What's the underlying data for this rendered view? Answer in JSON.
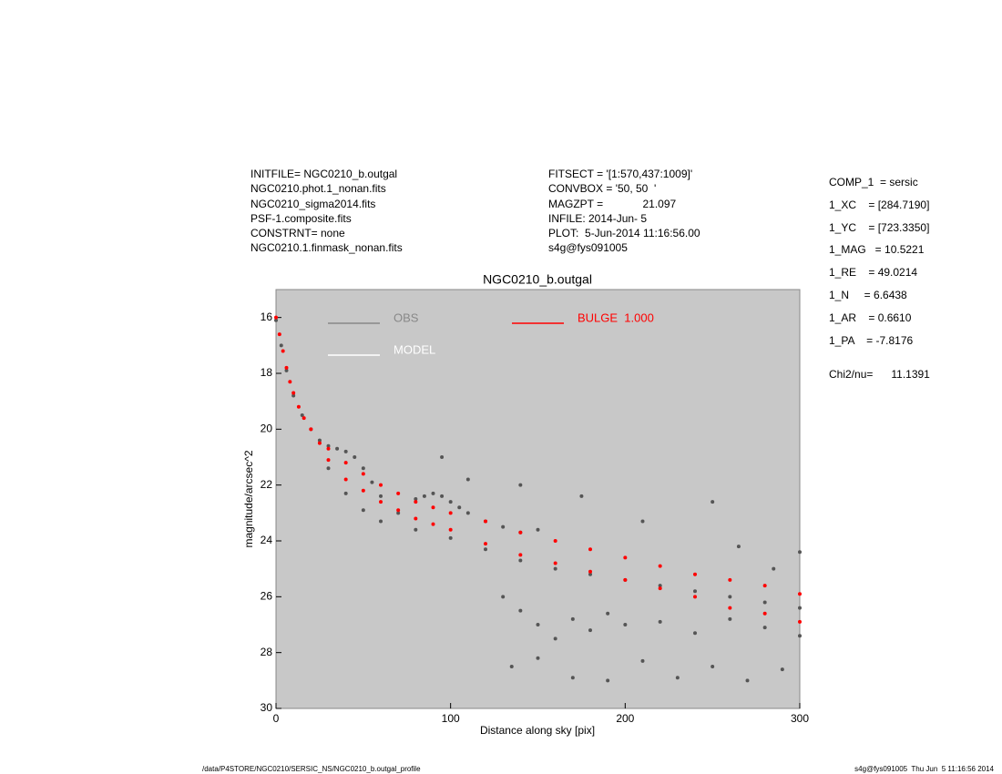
{
  "header": {
    "left": [
      "INITFILE= NGC0210_b.outgal",
      "NGC0210.phot.1_nonan.fits",
      "NGC0210_sigma2014.fits",
      "PSF-1.composite.fits",
      "CONSTRNT= none",
      "NGC0210.1.finmask_nonan.fits"
    ],
    "middle": [
      "FITSECT = '[1:570,437:1009]'",
      "CONVBOX = '50, 50  '",
      "MAGZPT =             21.097",
      "INFILE: 2014-Jun- 5",
      "PLOT:  5-Jun-2014 11:16:56.00",
      "s4g@fys091005"
    ],
    "params": [
      "COMP_1  = sersic",
      "1_XC    = [284.7190]",
      "1_YC    = [723.3350]",
      "1_MAG   = 10.5221",
      "1_RE    = 49.0214",
      "1_N     = 6.6438",
      "1_AR    = 0.6610",
      "1_PA    = -7.8176"
    ],
    "chi": "Chi2/nu=      11.1391"
  },
  "footer": {
    "left": "/data/P4STORE/NGC0210/SERSIC_NS/NGC0210_b.outgal_profile",
    "right": "s4g@fys091005  Thu Jun  5 11:16:56 2014"
  },
  "chart_data": {
    "type": "scatter",
    "title": "NGC0210_b.outgal",
    "x_label": "Distance along sky [pix]",
    "y_label": "magnitude/arcsec^2",
    "xlim": [
      0,
      300
    ],
    "ylim": [
      30,
      15
    ],
    "xticks": [
      0,
      100,
      200,
      300
    ],
    "yticks": [
      16,
      18,
      20,
      22,
      24,
      26,
      28,
      30
    ],
    "grid": false,
    "background": "#c8c8c8",
    "series": [
      {
        "name": "OBS",
        "color": "#555555",
        "x": [
          0,
          3,
          6,
          10,
          15,
          20,
          25,
          30,
          35,
          40,
          45,
          50,
          55,
          60,
          30,
          40,
          50,
          60,
          70,
          80,
          85,
          90,
          95,
          100,
          105,
          110,
          120,
          130,
          140,
          150,
          80,
          100,
          120,
          140,
          160,
          180,
          200,
          220,
          240,
          260,
          280,
          300,
          130,
          140,
          150,
          160,
          170,
          180,
          190,
          200,
          220,
          240,
          260,
          280,
          300,
          135,
          150,
          170,
          190,
          210,
          230,
          250,
          270,
          290,
          95,
          110,
          140,
          175,
          210,
          265,
          300,
          250,
          285
        ],
        "values": [
          16.1,
          17.0,
          17.9,
          18.8,
          19.5,
          20.0,
          20.4,
          20.6,
          20.7,
          20.8,
          21.0,
          21.4,
          21.9,
          22.4,
          21.4,
          22.3,
          22.9,
          23.3,
          23.0,
          22.5,
          22.4,
          22.3,
          22.4,
          22.6,
          22.8,
          23.0,
          23.3,
          23.5,
          23.7,
          23.6,
          23.6,
          23.9,
          24.3,
          24.7,
          25.0,
          25.2,
          25.4,
          25.6,
          25.8,
          26.0,
          26.2,
          26.4,
          26.0,
          26.5,
          27.0,
          27.5,
          26.8,
          27.2,
          26.6,
          27.0,
          26.9,
          27.3,
          26.8,
          27.1,
          27.4,
          28.5,
          28.2,
          28.9,
          29.0,
          28.3,
          28.9,
          28.5,
          29.0,
          28.6,
          21.0,
          21.8,
          22.0,
          22.4,
          23.3,
          24.2,
          24.4,
          22.6,
          25.0
        ]
      },
      {
        "name": "MODEL",
        "color": "#ffffff",
        "x": [],
        "values": []
      },
      {
        "name": "BULGE  1.000",
        "color": "#ff0000",
        "x": [
          0,
          2,
          4,
          6,
          8,
          10,
          13,
          16,
          20,
          25,
          30,
          30,
          40,
          40,
          50,
          50,
          60,
          60,
          70,
          70,
          80,
          80,
          90,
          90,
          100,
          100,
          120,
          120,
          140,
          140,
          160,
          160,
          180,
          180,
          200,
          200,
          220,
          220,
          240,
          240,
          260,
          260,
          280,
          280,
          300,
          300
        ],
        "values": [
          16.0,
          16.6,
          17.2,
          17.8,
          18.3,
          18.7,
          19.2,
          19.6,
          20.0,
          20.5,
          20.7,
          21.1,
          21.2,
          21.8,
          21.6,
          22.2,
          22.0,
          22.6,
          22.3,
          22.9,
          22.6,
          23.2,
          22.8,
          23.4,
          23.0,
          23.6,
          23.3,
          24.1,
          23.7,
          24.5,
          24.0,
          24.8,
          24.3,
          25.1,
          24.6,
          25.4,
          24.9,
          25.7,
          25.2,
          26.0,
          25.4,
          26.4,
          25.6,
          26.6,
          25.9,
          26.9
        ]
      }
    ]
  }
}
